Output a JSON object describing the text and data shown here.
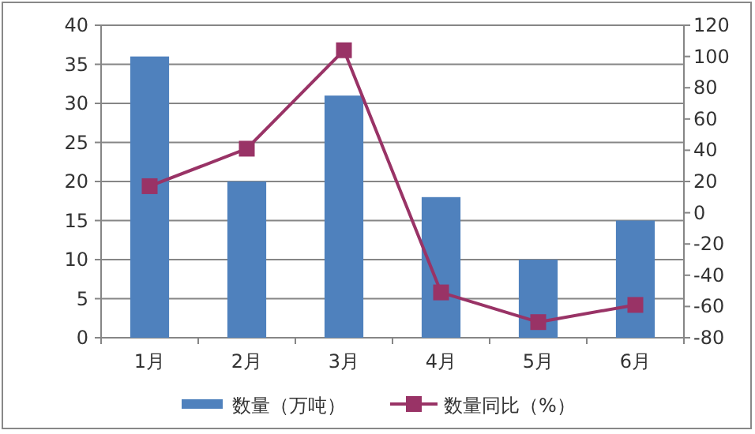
{
  "chart_data": {
    "type": "bar",
    "categories": [
      "1月",
      "2月",
      "3月",
      "4月",
      "5月",
      "6月"
    ],
    "series": [
      {
        "name": "数量（万吨）",
        "color": "#4f81bd",
        "values": [
          36,
          20,
          31,
          18,
          10,
          15
        ]
      },
      {
        "name": "数量同比（%）",
        "type": "line",
        "axis": "y2",
        "color": "#993366",
        "marker": "square",
        "values": [
          17,
          41,
          104,
          -51,
          -70,
          -59
        ]
      }
    ],
    "ylim": [
      0,
      40
    ],
    "yticks": [
      0,
      5,
      10,
      15,
      20,
      25,
      30,
      35,
      40
    ],
    "y2lim": [
      -80,
      120
    ],
    "y2ticks": [
      -80,
      -60,
      -40,
      -20,
      0,
      20,
      40,
      60,
      80,
      100,
      120
    ],
    "grid": "y",
    "legend": "bottom"
  }
}
